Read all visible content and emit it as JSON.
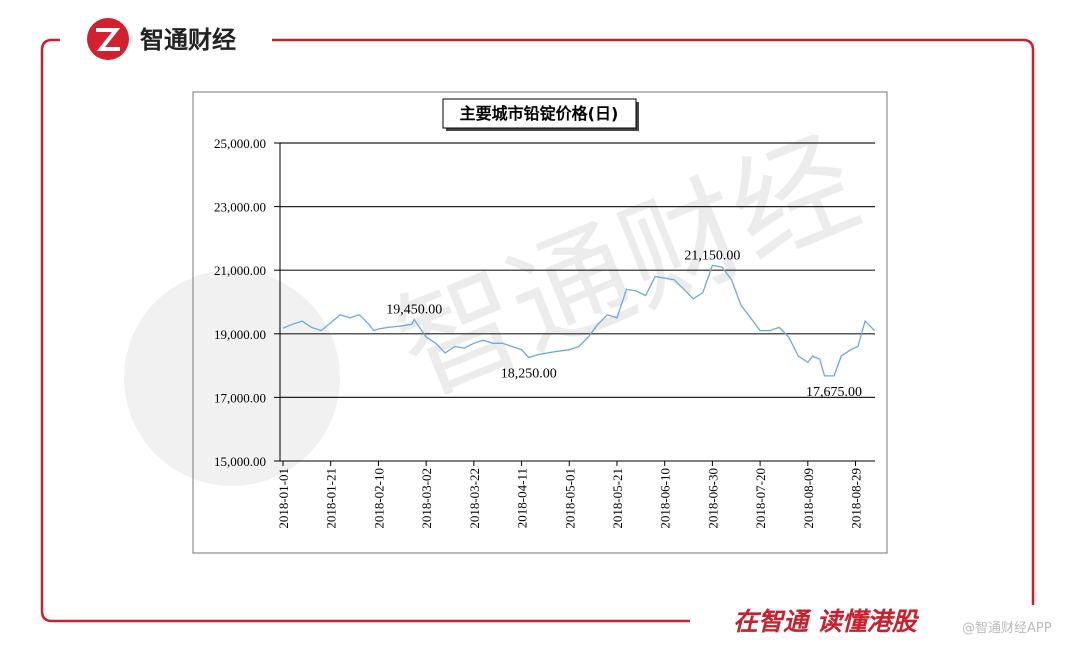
{
  "header": {
    "brand": "智通财经"
  },
  "footer": {
    "slogan": "在智通 读懂港股",
    "credit": "@智通财经APP"
  },
  "chart_data": {
    "type": "line",
    "title": "主要城市铅锭价格(日)",
    "color": "#6fa8dc",
    "grid": true,
    "x": [
      "2018-01-01",
      "2018-01-05",
      "2018-01-09",
      "2018-01-13",
      "2018-01-17",
      "2018-01-21",
      "2018-01-25",
      "2018-01-29",
      "2018-02-02",
      "2018-02-06",
      "2018-02-08",
      "2018-02-10",
      "2018-02-14",
      "2018-02-20",
      "2018-02-24",
      "2018-02-25",
      "2018-03-02",
      "2018-03-06",
      "2018-03-10",
      "2018-03-14",
      "2018-03-18",
      "2018-03-22",
      "2018-03-26",
      "2018-03-30",
      "2018-04-03",
      "2018-04-07",
      "2018-04-11",
      "2018-04-14",
      "2018-04-18",
      "2018-04-22",
      "2018-04-26",
      "2018-05-01",
      "2018-05-05",
      "2018-05-09",
      "2018-05-13",
      "2018-05-17",
      "2018-05-21",
      "2018-05-25",
      "2018-05-29",
      "2018-06-02",
      "2018-06-06",
      "2018-06-10",
      "2018-06-14",
      "2018-06-18",
      "2018-06-22",
      "2018-06-26",
      "2018-06-30",
      "2018-07-04",
      "2018-07-08",
      "2018-07-12",
      "2018-07-16",
      "2018-07-20",
      "2018-07-24",
      "2018-07-28",
      "2018-08-01",
      "2018-08-05",
      "2018-08-09",
      "2018-08-11",
      "2018-08-14",
      "2018-08-16",
      "2018-08-20",
      "2018-08-23",
      "2018-08-27",
      "2018-08-30",
      "2018-09-02",
      "2018-09-06"
    ],
    "values": [
      19180,
      19300,
      19400,
      19200,
      19100,
      19350,
      19600,
      19500,
      19600,
      19300,
      19100,
      19150,
      19200,
      19250,
      19300,
      19450,
      18900,
      18700,
      18400,
      18600,
      18550,
      18700,
      18800,
      18700,
      18700,
      18600,
      18500,
      18250,
      18350,
      18400,
      18450,
      18500,
      18600,
      18900,
      19300,
      19600,
      19500,
      20400,
      20350,
      20200,
      20800,
      20750,
      20700,
      20400,
      20100,
      20300,
      21150,
      21100,
      20700,
      19900,
      19500,
      19100,
      19100,
      19200,
      18900,
      18300,
      18100,
      18300,
      18200,
      17675,
      17675,
      18300,
      18500,
      18600,
      19400,
      19100
    ],
    "annotations": [
      {
        "x": "2018-02-25",
        "value": 19450,
        "label": "19,450.00"
      },
      {
        "x": "2018-04-14",
        "value": 18250,
        "label": "18,250.00"
      },
      {
        "x": "2018-06-30",
        "value": 21150,
        "label": "21,150.00"
      },
      {
        "x": "2018-08-20",
        "value": 17675,
        "label": "17,675.00"
      }
    ],
    "xlim": [
      "2018-01-01",
      "2018-09-07"
    ],
    "xticks": [
      "2018-01-01",
      "2018-01-21",
      "2018-02-10",
      "2018-03-02",
      "2018-03-22",
      "2018-04-11",
      "2018-05-01",
      "2018-05-21",
      "2018-06-10",
      "2018-06-30",
      "2018-07-20",
      "2018-08-09",
      "2018-08-29"
    ],
    "ylim": [
      15000,
      25000
    ],
    "yticks": [
      {
        "value": 15000,
        "label": "15,000.00"
      },
      {
        "value": 17000,
        "label": "17,000.00"
      },
      {
        "value": 19000,
        "label": "19,000.00"
      },
      {
        "value": 21000,
        "label": "21,000.00"
      },
      {
        "value": 23000,
        "label": "23,000.00"
      },
      {
        "value": 25000,
        "label": "25,000.00"
      }
    ]
  }
}
